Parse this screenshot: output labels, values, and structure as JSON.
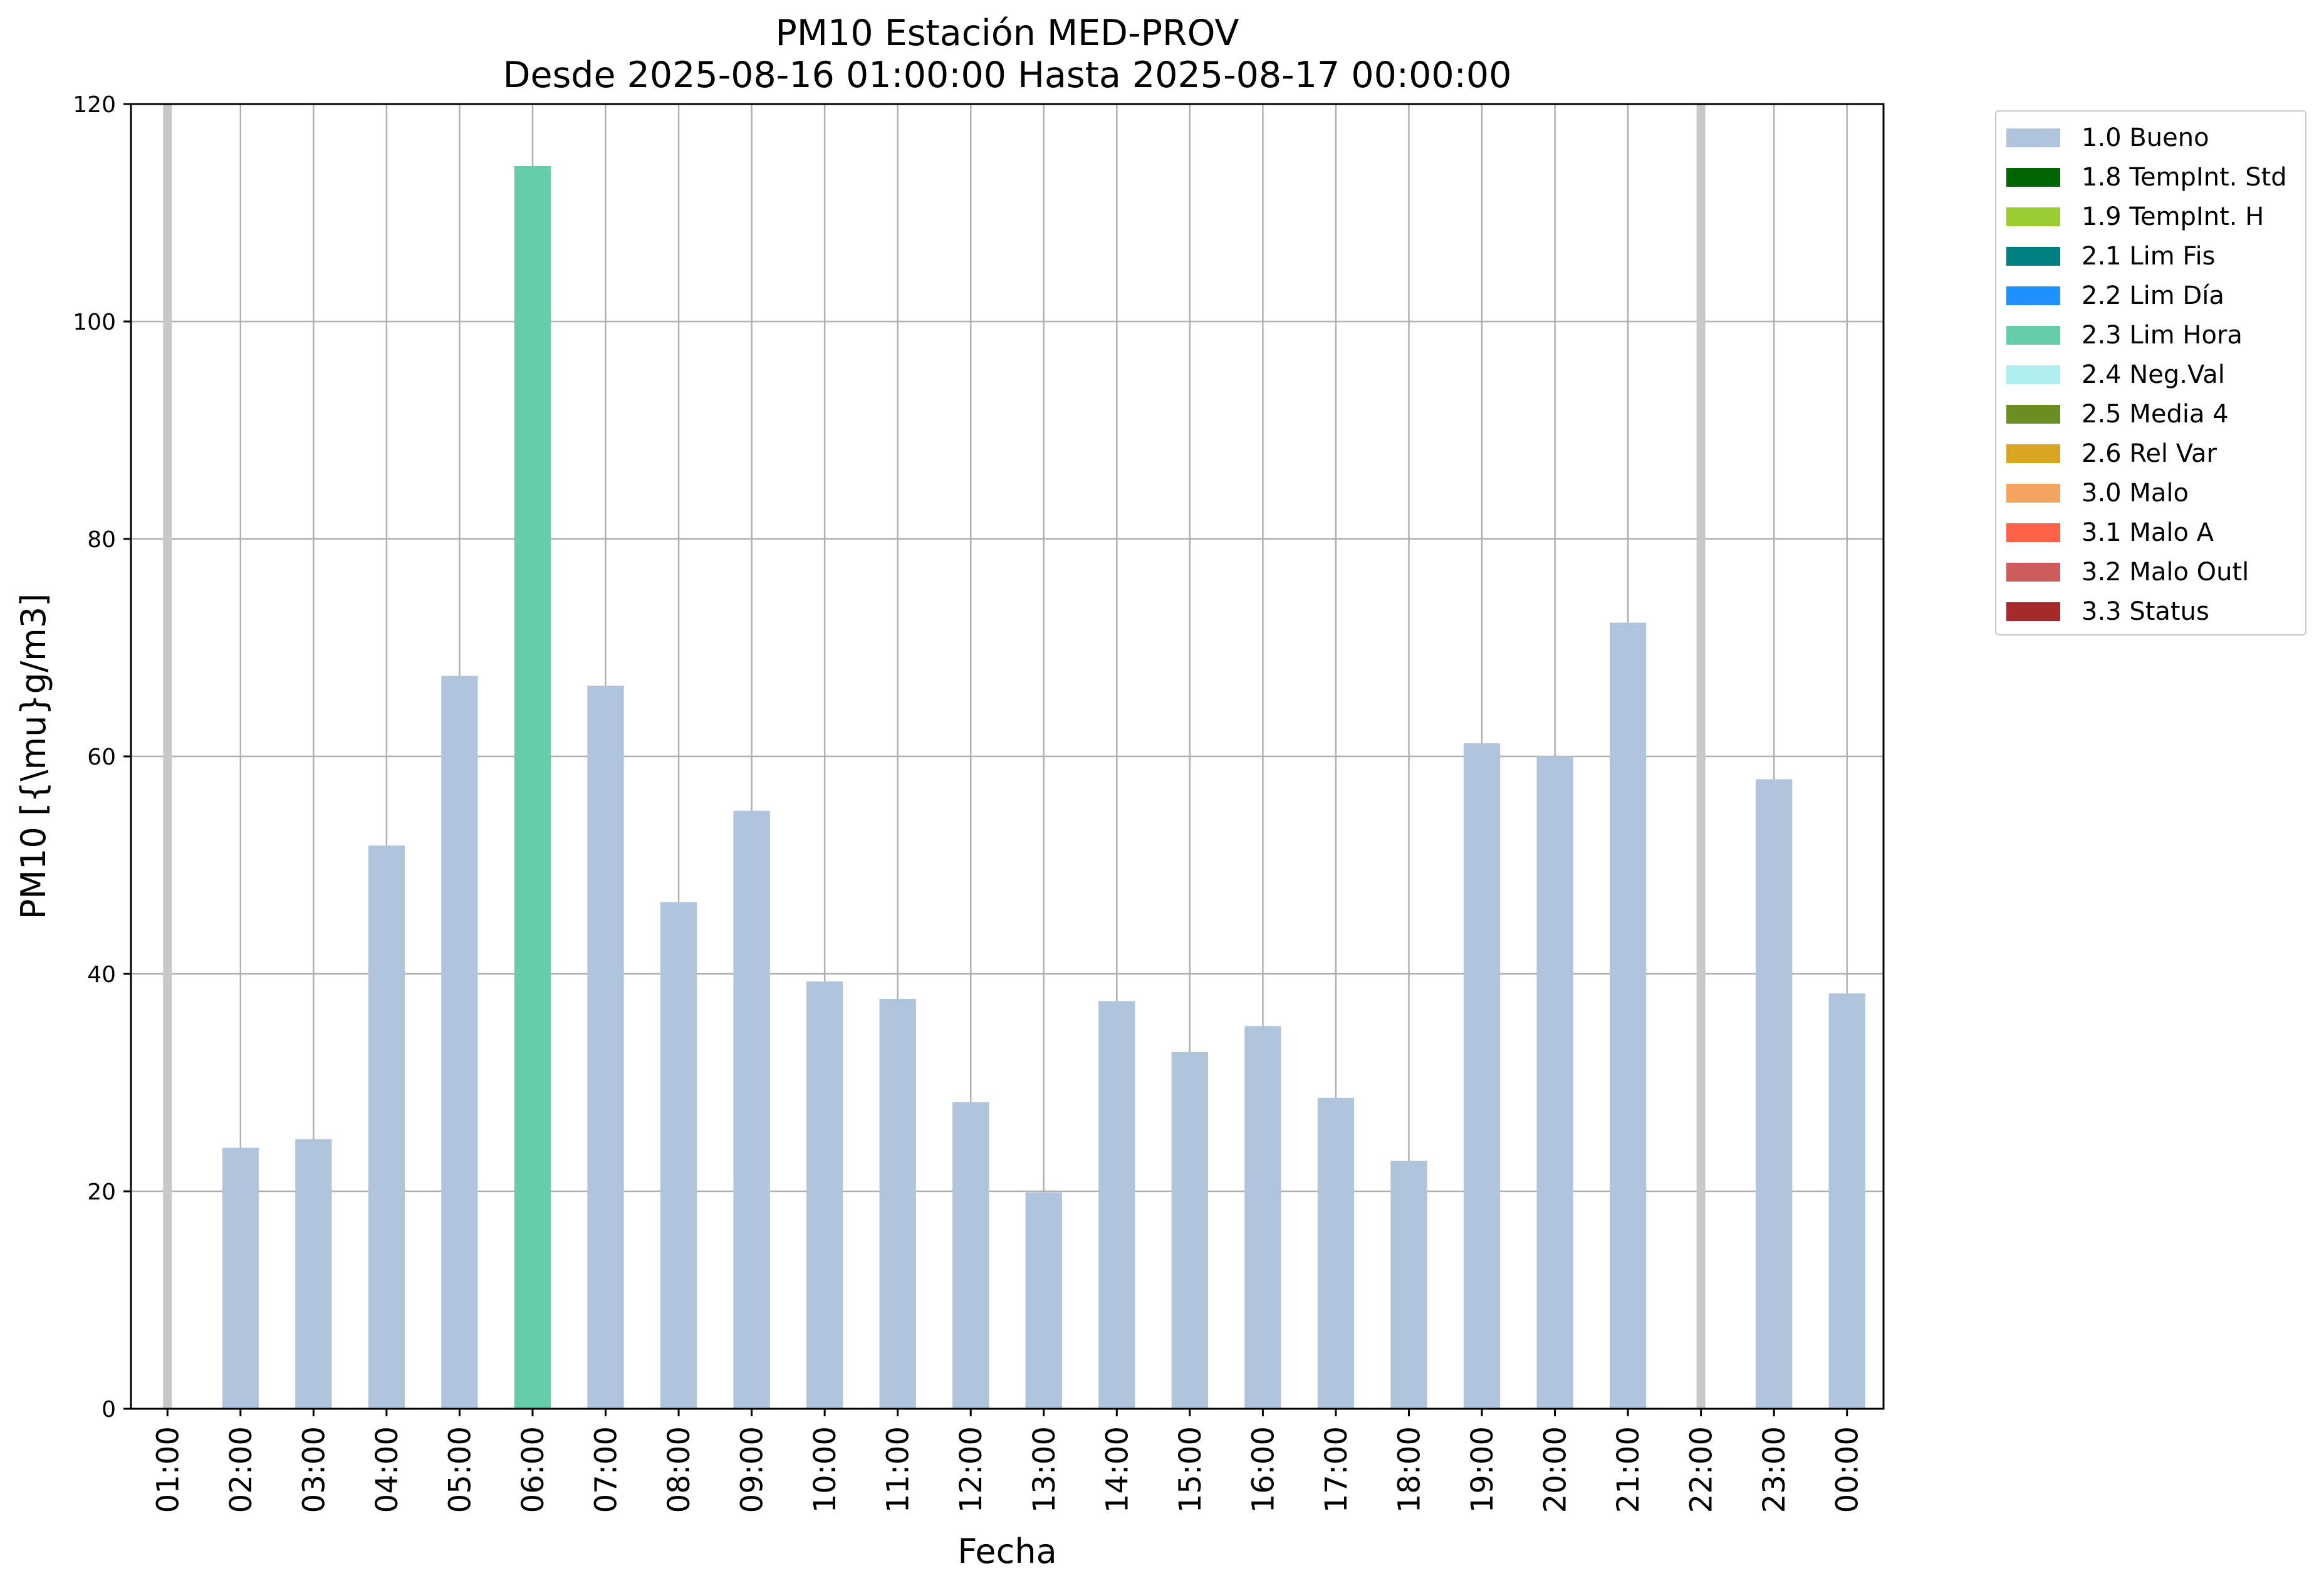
{
  "chart_data": {
    "type": "bar",
    "title": "PM10 Estación MED-PROV",
    "subtitle": "Desde 2025-08-16 01:00:00 Hasta 2025-08-17 00:00:00",
    "xlabel": "Fecha",
    "ylabel": "PM10 [{\\mu}g/m3]",
    "ylim": [
      0,
      120
    ],
    "yticks": [
      0,
      20,
      40,
      60,
      80,
      100,
      120
    ],
    "grid": true,
    "legend_position": "outside-right",
    "categories": [
      "01:00",
      "02:00",
      "03:00",
      "04:00",
      "05:00",
      "06:00",
      "07:00",
      "08:00",
      "09:00",
      "10:00",
      "11:00",
      "12:00",
      "13:00",
      "14:00",
      "15:00",
      "16:00",
      "17:00",
      "18:00",
      "19:00",
      "20:00",
      "21:00",
      "22:00",
      "23:00",
      "00:00"
    ],
    "values": [
      null,
      24.0,
      24.8,
      51.8,
      67.4,
      114.3,
      66.5,
      46.6,
      55.0,
      39.3,
      37.7,
      28.2,
      19.9,
      37.5,
      32.8,
      35.2,
      28.6,
      22.8,
      61.2,
      60.0,
      72.3,
      null,
      57.9,
      38.2
    ],
    "bar_flags": [
      "missing",
      "1.0 Bueno",
      "1.0 Bueno",
      "1.0 Bueno",
      "1.0 Bueno",
      "2.3 Lim Hora",
      "1.0 Bueno",
      "1.0 Bueno",
      "1.0 Bueno",
      "1.0 Bueno",
      "1.0 Bueno",
      "1.0 Bueno",
      "1.0 Bueno",
      "1.0 Bueno",
      "1.0 Bueno",
      "1.0 Bueno",
      "1.0 Bueno",
      "1.0 Bueno",
      "1.0 Bueno",
      "1.0 Bueno",
      "1.0 Bueno",
      "missing",
      "1.0 Bueno",
      "1.0 Bueno"
    ],
    "missing_color": "#c8c8c8",
    "legend": [
      {
        "label": "1.0 Bueno",
        "color": "#b0c4de"
      },
      {
        "label": "1.8 TempInt. Std",
        "color": "#006400"
      },
      {
        "label": "1.9 TempInt. H",
        "color": "#9acd32"
      },
      {
        "label": "2.1 Lim Fis",
        "color": "#008080"
      },
      {
        "label": "2.2 Lim Día",
        "color": "#1e90ff"
      },
      {
        "label": "2.3 Lim Hora",
        "color": "#66cdaa"
      },
      {
        "label": "2.4 Neg.Val",
        "color": "#afeeee"
      },
      {
        "label": "2.5 Media 4",
        "color": "#6b8e23"
      },
      {
        "label": "2.6 Rel Var",
        "color": "#daa520"
      },
      {
        "label": "3.0 Malo",
        "color": "#f4a460"
      },
      {
        "label": "3.1 Malo A",
        "color": "#ff6347"
      },
      {
        "label": "3.2 Malo Outl",
        "color": "#cd5c5c"
      },
      {
        "label": "3.3 Status",
        "color": "#a52a2a"
      }
    ]
  }
}
